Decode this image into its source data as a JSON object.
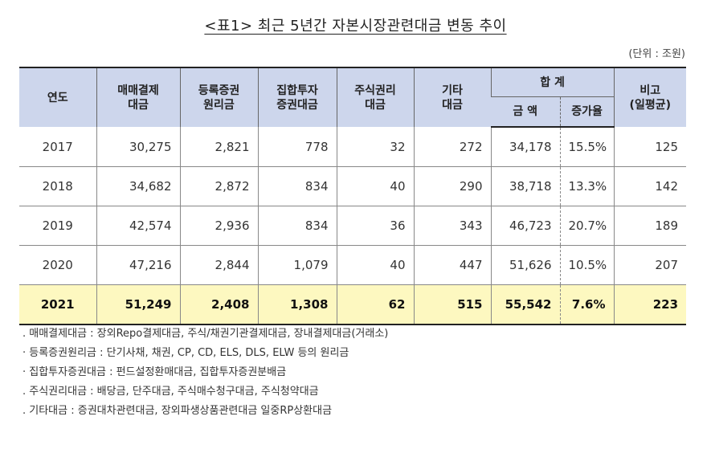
{
  "title": "<표1> 최근 5년간 자본시장관련대금 변동 추이",
  "unit": "(단위 : 조원)",
  "headers": {
    "year": "연도",
    "col1": [
      "매매결제",
      "대금"
    ],
    "col2": [
      "등록증권",
      "원리금"
    ],
    "col3": [
      "집합투자",
      "증권대금"
    ],
    "col4": [
      "주식권리",
      "대금"
    ],
    "col5": [
      "기타",
      "대금"
    ],
    "total": "합 계",
    "amount": "금 액",
    "growth": "증가율",
    "note": [
      "비고",
      "(일평균)"
    ]
  },
  "rows": [
    {
      "year": "2017",
      "c1": "30,275",
      "c2": "2,821",
      "c3": "778",
      "c4": "32",
      "c5": "272",
      "amount": "34,178",
      "growth": "15.5%",
      "note": "125"
    },
    {
      "year": "2018",
      "c1": "34,682",
      "c2": "2,872",
      "c3": "834",
      "c4": "40",
      "c5": "290",
      "amount": "38,718",
      "growth": "13.3%",
      "note": "142"
    },
    {
      "year": "2019",
      "c1": "42,574",
      "c2": "2,936",
      "c3": "834",
      "c4": "36",
      "c5": "343",
      "amount": "46,723",
      "growth": "20.7%",
      "note": "189"
    },
    {
      "year": "2020",
      "c1": "47,216",
      "c2": "2,844",
      "c3": "1,079",
      "c4": "40",
      "c5": "447",
      "amount": "51,626",
      "growth": "10.5%",
      "note": "207"
    },
    {
      "year": "2021",
      "c1": "51,249",
      "c2": "2,408",
      "c3": "1,308",
      "c4": "62",
      "c5": "515",
      "amount": "55,542",
      "growth": "7.6%",
      "note": "223"
    }
  ],
  "notes": [
    ". 매매결제대금 : 장외Repo결제대금, 주식/채권기관결제대금, 장내결제대금(거래소)",
    "· 등록증권원리금 : 단기사채, 채권, CP, CD, ELS, DLS, ELW 등의 원리금",
    "· 집합투자증권대금 : 펀드설정환매대금, 집합투자증권분배금",
    ". 주식권리대금 : 배당금, 단주대금, 주식매수청구대금, 주식청약대금",
    ". 기타대금 : 증권대차관련대금, 장외파생상품관련대금 일중RP상환대금"
  ],
  "colors": {
    "header_bg": "#cdd6ec",
    "highlight_bg": "#fdf8c0"
  }
}
